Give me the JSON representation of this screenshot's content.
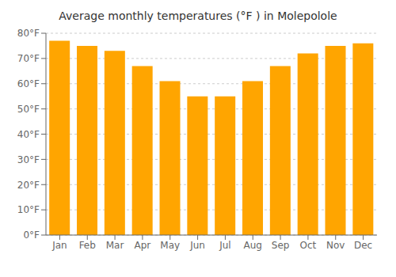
{
  "chart_data": {
    "type": "bar",
    "title": "Average monthly temperatures (°F ) in Molepolole",
    "categories": [
      "Jan",
      "Feb",
      "Mar",
      "Apr",
      "May",
      "Jun",
      "Jul",
      "Aug",
      "Sep",
      "Oct",
      "Nov",
      "Dec"
    ],
    "values": [
      77,
      75,
      73,
      67,
      61,
      55,
      55,
      61,
      67,
      72,
      75,
      76
    ],
    "color": "#FFA500",
    "ylim": [
      0,
      80
    ],
    "yticks": [
      {
        "value": 0,
        "label": "0°F"
      },
      {
        "value": 10,
        "label": "10°F"
      },
      {
        "value": 20,
        "label": "20°F"
      },
      {
        "value": 30,
        "label": "30°F"
      },
      {
        "value": 40,
        "label": "40°F"
      },
      {
        "value": 50,
        "label": "50°F"
      },
      {
        "value": 60,
        "label": "60°F"
      },
      {
        "value": 70,
        "label": "70°F"
      },
      {
        "value": 80,
        "label": "80°F"
      }
    ],
    "grid": true
  }
}
